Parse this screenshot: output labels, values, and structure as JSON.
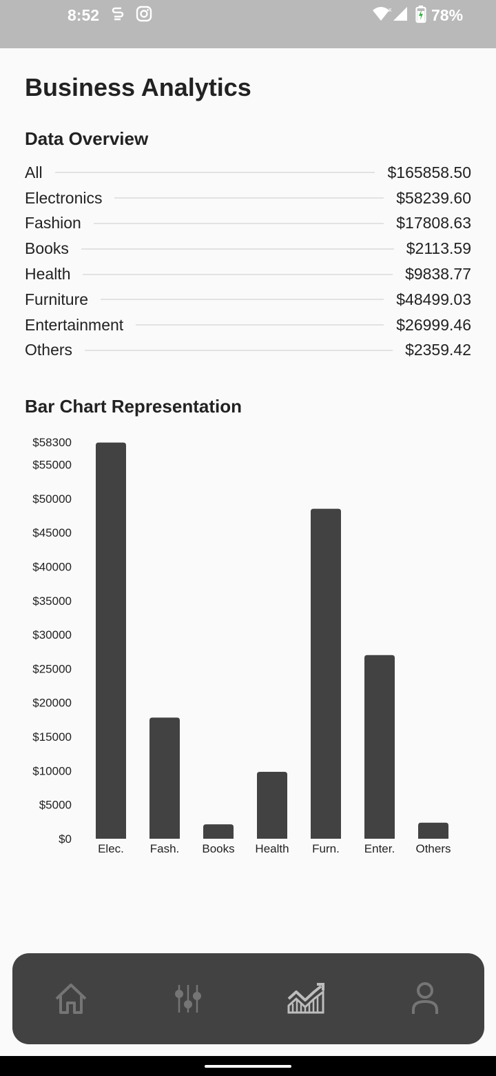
{
  "status_bar": {
    "time": "8:52",
    "battery": "78%",
    "icons": [
      "sync-icon",
      "instagram-icon",
      "wifi-icon",
      "signal-icon",
      "battery-charging-icon"
    ]
  },
  "page_title": "Business Analytics",
  "overview": {
    "title": "Data Overview",
    "items": [
      {
        "label": "All",
        "value": "$165858.50"
      },
      {
        "label": "Electronics",
        "value": "$58239.60"
      },
      {
        "label": "Fashion",
        "value": "$17808.63"
      },
      {
        "label": "Books",
        "value": "$2113.59"
      },
      {
        "label": "Health",
        "value": "$9838.77"
      },
      {
        "label": "Furniture",
        "value": "$48499.03"
      },
      {
        "label": "Entertainment",
        "value": "$26999.46"
      },
      {
        "label": "Others",
        "value": "$2359.42"
      }
    ]
  },
  "chart_title": "Bar Chart Representation",
  "chart_data": {
    "type": "bar",
    "title": "Bar Chart Representation",
    "categories": [
      "Elec.",
      "Fash.",
      "Books",
      "Health",
      "Furn.",
      "Enter.",
      "Others"
    ],
    "values": [
      58239.6,
      17808.63,
      2113.59,
      9838.77,
      48499.03,
      26999.46,
      2359.42
    ],
    "ylim": [
      0,
      58300
    ],
    "yticks": [
      0,
      5000,
      10000,
      15000,
      20000,
      25000,
      30000,
      35000,
      40000,
      45000,
      50000,
      55000,
      58300
    ],
    "ytick_labels": [
      "$0",
      "$5000",
      "$10000",
      "$15000",
      "$20000",
      "$25000",
      "$30000",
      "$35000",
      "$40000",
      "$45000",
      "$50000",
      "$55000",
      "$58300"
    ],
    "bar_color": "#424242",
    "grid": false,
    "xlabel": "",
    "ylabel": ""
  },
  "bottom_nav": {
    "items": [
      {
        "name": "home",
        "icon": "home-icon"
      },
      {
        "name": "filters",
        "icon": "sliders-icon"
      },
      {
        "name": "analytics",
        "icon": "chart-icon"
      },
      {
        "name": "profile",
        "icon": "person-icon"
      }
    ]
  },
  "colors": {
    "status_bar": "#b9b9b9",
    "background": "#fafafa",
    "bar": "#424242",
    "nav": "#424242",
    "nav_icon": "#757575"
  }
}
